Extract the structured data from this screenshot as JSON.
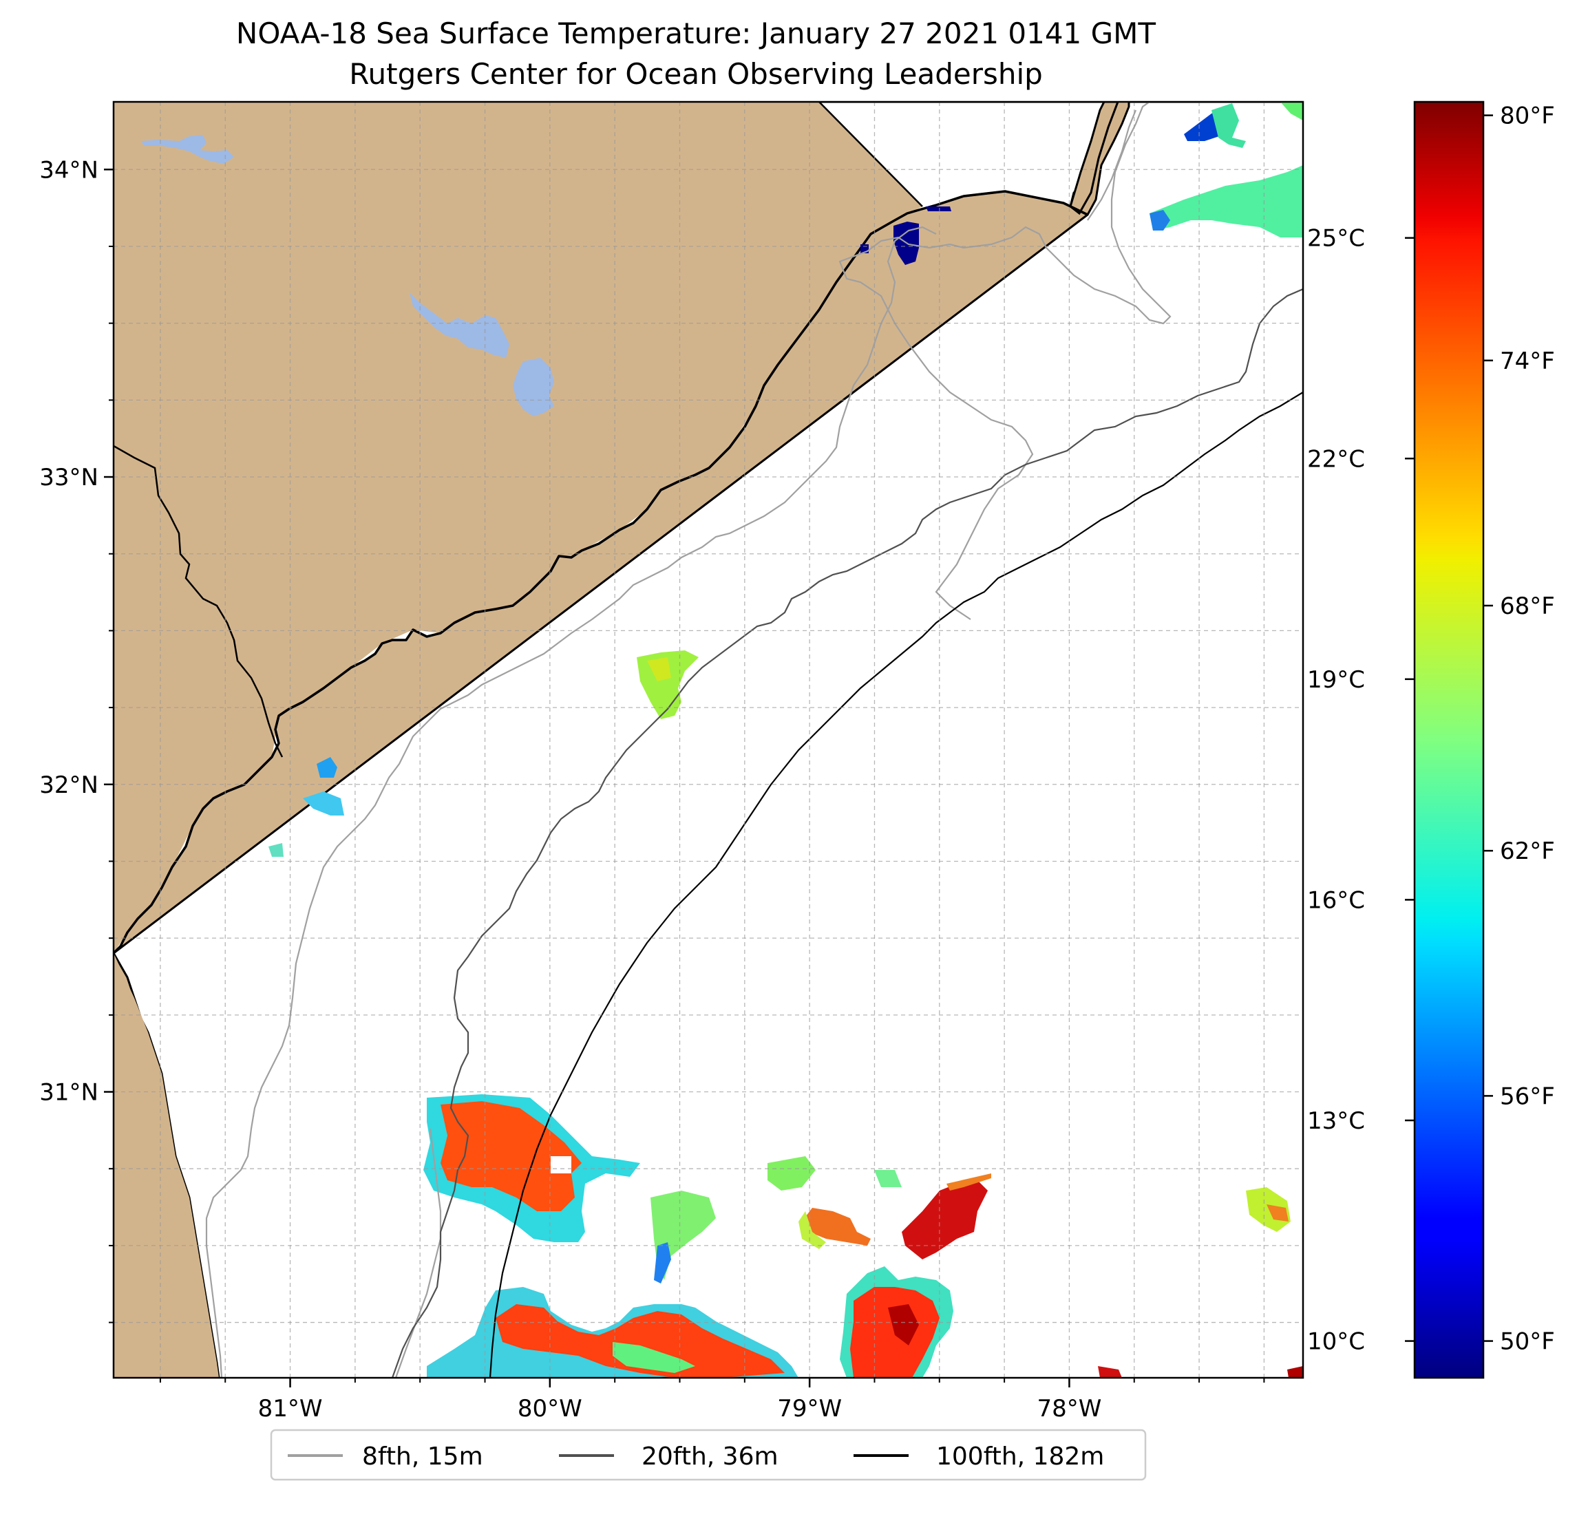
{
  "title": {
    "line1": "NOAA-18 Sea Surface Temperature: January 27 2021 0141 GMT",
    "line2": "Rutgers Center for Ocean Observing Leadership"
  },
  "map": {
    "lon_range": [
      -81.68,
      -77.1
    ],
    "lat_range": [
      30.07,
      34.22
    ],
    "land_color": "#D2B48C",
    "lake_color": "#9DB9E6",
    "ocean_color": "#FFFFFF",
    "lat_ticks": [
      {
        "value": 34,
        "label": "34°N"
      },
      {
        "value": 33,
        "label": "33°N"
      },
      {
        "value": 32,
        "label": "32°N"
      },
      {
        "value": 31,
        "label": "31°N"
      }
    ],
    "lon_ticks": [
      {
        "value": -81,
        "label": "81°W"
      },
      {
        "value": -80,
        "label": "80°W"
      },
      {
        "value": -79,
        "label": "79°W"
      },
      {
        "value": -78,
        "label": "78°W"
      }
    ]
  },
  "colorbar": {
    "colormap": "jet",
    "min_c": 9.5,
    "max_c": 26.85,
    "celsius_ticks": [
      {
        "value": 25,
        "label": "25°C"
      },
      {
        "value": 22,
        "label": "22°C"
      },
      {
        "value": 19,
        "label": "19°C"
      },
      {
        "value": 16,
        "label": "16°C"
      },
      {
        "value": 13,
        "label": "13°C"
      },
      {
        "value": 10,
        "label": "10°C"
      }
    ],
    "fahrenheit_ticks": [
      {
        "value": 80,
        "label": "80°F"
      },
      {
        "value": 74,
        "label": "74°F"
      },
      {
        "value": 68,
        "label": "68°F"
      },
      {
        "value": 62,
        "label": "62°F"
      },
      {
        "value": 56,
        "label": "56°F"
      },
      {
        "value": 50,
        "label": "50°F"
      }
    ]
  },
  "legend": {
    "entries": [
      {
        "label": "8fth, 15m",
        "color": "#A0A0A0"
      },
      {
        "label": "20fth, 36m",
        "color": "#505050"
      },
      {
        "label": "100fth, 182m",
        "color": "#000000"
      }
    ]
  }
}
